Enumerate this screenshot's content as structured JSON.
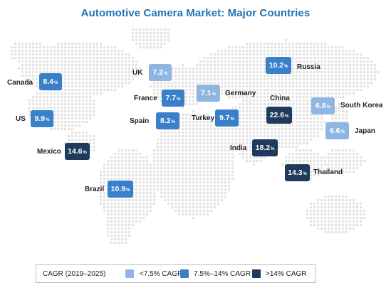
{
  "title": "Automotive Camera Market: Major Countries",
  "colors": {
    "low": "#8fb6e0",
    "mid": "#3a7fca",
    "high": "#1e3a5c",
    "map_dots": "#e3e3e3"
  },
  "legend": {
    "title": "CAGR (2019–2025)",
    "items": [
      {
        "label": "<7.5% CAGR",
        "tier": "low"
      },
      {
        "label": "7.5%–14% CAGR",
        "tier": "mid"
      },
      {
        "label": ">14% CAGR",
        "tier": "high"
      }
    ]
  },
  "countries": [
    {
      "name": "UK",
      "value": "7.2",
      "tier": "low"
    },
    {
      "name": "Russia",
      "value": "10.2",
      "tier": "mid"
    },
    {
      "name": "Canada",
      "value": "8.4",
      "tier": "mid"
    },
    {
      "name": "France",
      "value": "7.7",
      "tier": "mid"
    },
    {
      "name": "Germany",
      "value": "7.1",
      "tier": "low"
    },
    {
      "name": "China",
      "value": "22.6",
      "tier": "high"
    },
    {
      "name": "South Korea",
      "value": "6.8",
      "tier": "low"
    },
    {
      "name": "US",
      "value": "9.9",
      "tier": "mid"
    },
    {
      "name": "Spain",
      "value": "8.2",
      "tier": "mid"
    },
    {
      "name": "Turkey",
      "value": "9.7",
      "tier": "mid"
    },
    {
      "name": "Japan",
      "value": "6.6",
      "tier": "low"
    },
    {
      "name": "Mexico",
      "value": "14.6",
      "tier": "high"
    },
    {
      "name": "India",
      "value": "18.2",
      "tier": "high"
    },
    {
      "name": "Thailand",
      "value": "14.3",
      "tier": "high"
    },
    {
      "name": "Brazil",
      "value": "10.9",
      "tier": "mid"
    }
  ],
  "pct_symbol": "%"
}
